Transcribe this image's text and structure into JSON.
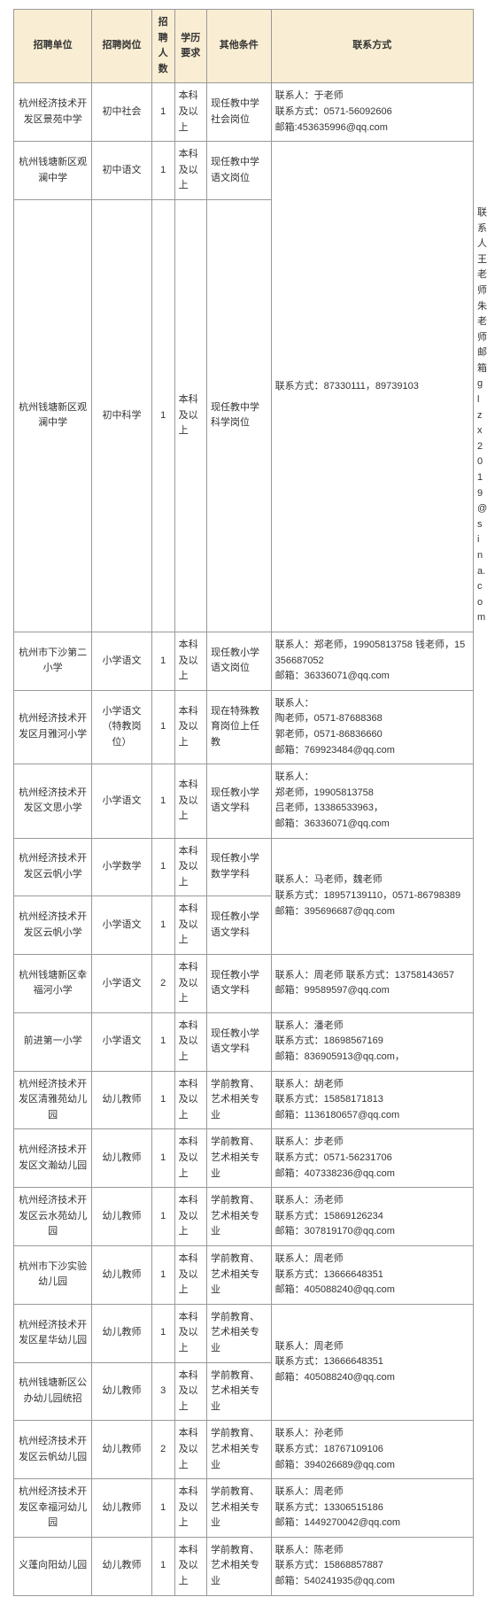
{
  "headers": {
    "unit": "招聘单位",
    "post": "招聘岗位",
    "num": "招聘人数",
    "edu": "学历要求",
    "other": "其他条件",
    "contact": "联系方式"
  },
  "rows": [
    {
      "unit": "杭州经济技术开发区景苑中学",
      "post": "初中社会",
      "num": "1",
      "edu": "本科及以上",
      "other": "现任教中学社会岗位",
      "contact": "联系人：于老师\n联系方式：0571-56092606\n邮箱:453635996@qq.com"
    },
    {
      "unit": "杭州钱塘新区观澜中学",
      "post": "初中语文",
      "num": "1",
      "edu": "本科及以上",
      "other": "现任教中学语文岗位",
      "contact": "联系方式：87330111，89739103",
      "contact_rowspan": 2
    },
    {
      "unit": "杭州钱塘新区观澜中学",
      "post": "初中科学",
      "num": "1",
      "edu": "本科及以上",
      "other": "现任教中学科学岗位",
      "contact": "联系人：王老师，朱老师\n邮箱：glzx2019@sina.com",
      "skip_contact": false
    },
    {
      "unit": "杭州市下沙第二小学",
      "post": "小学语文",
      "num": "1",
      "edu": "本科及以上",
      "other": "现任教小学语文岗位",
      "contact": "联系人：郑老师，19905813758 钱老师，15356687052\n邮箱：36336071@qq.com"
    },
    {
      "unit": "杭州经济技术开发区月雅河小学",
      "post": "小学语文（特教岗位）",
      "num": "1",
      "edu": "本科及以上",
      "other": "现在特殊教育岗位上任教",
      "contact": "联系人：\n陶老师，0571-87688368\n郭老师，0571-86836660\n邮箱：769923484@qq.com"
    },
    {
      "unit": "杭州经济技术开发区文思小学",
      "post": "小学语文",
      "num": "1",
      "edu": "本科及以上",
      "other": "现任教小学语文学科",
      "contact": "联系人：\n郑老师，19905813758\n吕老师，13386533963，\n邮箱：36336071@qq.com"
    },
    {
      "unit": "杭州经济技术开发区云帆小学",
      "post": "小学数学",
      "num": "1",
      "edu": "本科及以上",
      "other": "现任教小学数学学科",
      "contact": "联系人：马老师，魏老师\n联系方式：18957139110，0571-86798389\n邮箱：395696687@qq.com",
      "contact_rowspan": 2
    },
    {
      "unit": "杭州经济技术开发区云帆小学",
      "post": "小学语文",
      "num": "1",
      "edu": "本科及以上",
      "other": "现任教小学语文学科",
      "skip_contact": true
    },
    {
      "unit": "杭州钱塘新区幸福河小学",
      "post": "小学语文",
      "num": "2",
      "edu": "本科及以上",
      "other": "现任教小学语文学科",
      "contact": "联系人：周老师          联系方式：13758143657\n邮箱：99589597@qq.com"
    },
    {
      "unit": "前进第一小学",
      "post": "小学语文",
      "num": "1",
      "edu": "本科及以上",
      "other": "现任教小学语文学科",
      "contact": "联系人：潘老师\n联系方式：18698567169\n邮箱：836905913@qq.com，"
    },
    {
      "unit": "杭州经济技术开发区清雅苑幼儿园",
      "post": "幼儿教师",
      "num": "1",
      "edu": "本科及以上",
      "other": "学前教育、艺术相关专业",
      "contact": "联系人：胡老师\n联系方式：15858171813\n邮箱：1136180657@qq.com"
    },
    {
      "unit": "杭州经济技术开发区文瀚幼儿园",
      "post": "幼儿教师",
      "num": "1",
      "edu": "本科及以上",
      "other": "学前教育、艺术相关专业",
      "contact": "联系人：步老师\n联系方式：0571-56231706\n邮箱：407338236@qq.com"
    },
    {
      "unit": "杭州经济技术开发区云水苑幼儿园",
      "post": "幼儿教师",
      "num": "1",
      "edu": "本科及以上",
      "other": "学前教育、艺术相关专业",
      "contact": "联系人：汤老师\n联系方式：15869126234\n邮箱：307819170@qq.com"
    },
    {
      "unit": "杭州市下沙实验幼儿园",
      "post": "幼儿教师",
      "num": "1",
      "edu": "本科及以上",
      "other": "学前教育、艺术相关专业",
      "contact": "联系人：周老师\n联系方式：13666648351\n邮箱：405088240@qq.com"
    },
    {
      "unit": "杭州经济技术开发区星华幼儿园",
      "post": "幼儿教师",
      "num": "1",
      "edu": "本科及以上",
      "other": "学前教育、艺术相关专业",
      "contact": "联系人：周老师\n联系方式：13666648351\n邮箱：405088240@qq.com",
      "contact_rowspan": 2
    },
    {
      "unit": "杭州钱塘新区公办幼儿园统招",
      "post": "幼儿教师",
      "num": "3",
      "edu": "本科及以上",
      "other": "学前教育、艺术相关专业",
      "skip_contact": true
    },
    {
      "unit": "杭州经济技术开发区云帆幼儿园",
      "post": "幼儿教师",
      "num": "2",
      "edu": "本科及以上",
      "other": "学前教育、艺术相关专业",
      "contact": "联系人：孙老师\n联系方式：18767109106\n邮箱：394026689@qq.com"
    },
    {
      "unit": "杭州经济技术开发区幸福河幼儿园",
      "post": "幼儿教师",
      "num": "1",
      "edu": "本科及以上",
      "other": "学前教育、艺术相关专业",
      "contact": "联系人：周老师\n联系方式：13306515186\n邮箱：1449270042@qq.com"
    },
    {
      "unit": "义蓬向阳幼儿园",
      "post": "幼儿教师",
      "num": "1",
      "edu": "本科及以上",
      "other": "学前教育、艺术相关专业",
      "contact": "联系人：陈老师\n联系方式：15868857887\n邮箱：540241935@qq.com"
    }
  ]
}
